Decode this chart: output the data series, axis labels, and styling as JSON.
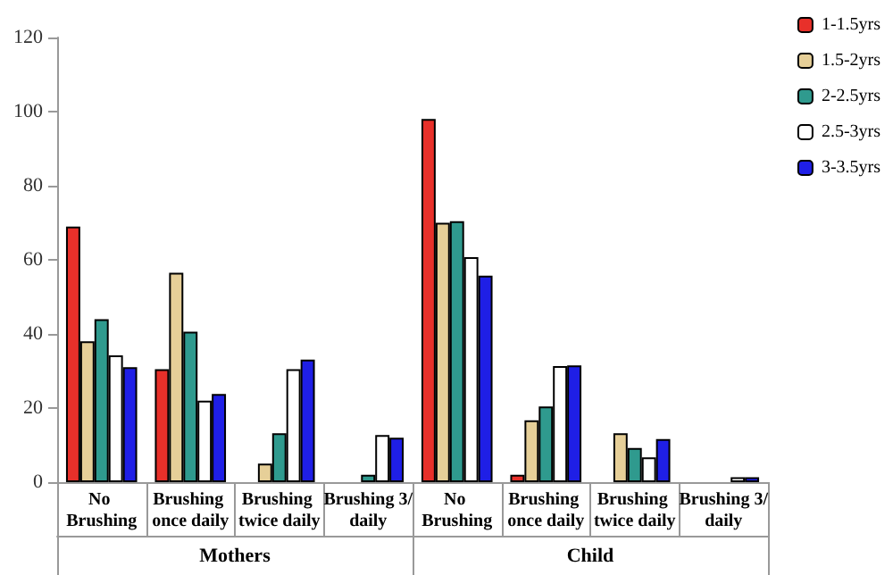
{
  "chart_data": {
    "type": "bar",
    "categories": [
      "No Brushing",
      "Brushing once daily",
      "Brushing twice daily",
      "Brushing 3/daily",
      "No Brushing",
      "Brushing once daily",
      "Brushing twice daily",
      "Brushing 3/daily"
    ],
    "annotations": [
      "Mothers",
      "Child"
    ],
    "series": [
      {
        "name": "1-1.5yrs",
        "color": "#e8302a",
        "values": [
          69,
          30.5,
          null,
          null,
          98,
          2,
          null,
          null
        ]
      },
      {
        "name": "1.5-2yrs",
        "color": "#e6cf98",
        "values": [
          38,
          56.5,
          5,
          null,
          70,
          16.7,
          13.2,
          null
        ]
      },
      {
        "name": "2-2.5yrs",
        "color": "#2f9a8e",
        "values": [
          44,
          40.6,
          13.2,
          2,
          70.4,
          20.4,
          9.2,
          null
        ]
      },
      {
        "name": "2.5-3yrs",
        "color": "#ffffff",
        "values": [
          34.2,
          22,
          30.5,
          12.7,
          60.7,
          31.3,
          6.7,
          1.3
        ]
      },
      {
        "name": "3-3.5yrs",
        "color": "#1f1fe6",
        "values": [
          31,
          23.8,
          33.1,
          12,
          55.7,
          31.5,
          11.6,
          1.3
        ]
      }
    ],
    "ylim": [
      0,
      120
    ],
    "yticks": [
      0,
      20,
      40,
      60,
      80,
      100,
      120
    ],
    "grid": false,
    "legend": "top right"
  }
}
